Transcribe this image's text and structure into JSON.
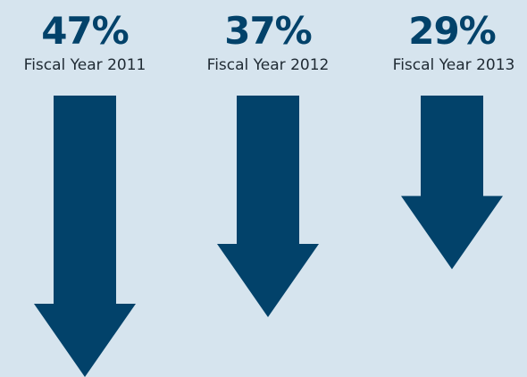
{
  "chart_data": {
    "type": "bar",
    "orientation": "downward-arrows",
    "categories": [
      "Fiscal Year 2011",
      "Fiscal Year 2012",
      "Fiscal Year 2013"
    ],
    "values": [
      47,
      37,
      29
    ],
    "value_labels": [
      "47%",
      "37%",
      "29%"
    ],
    "unit": "%",
    "title": "",
    "xlabel": "",
    "ylabel": "",
    "ylim": [
      0,
      47
    ],
    "grid": false,
    "colors": {
      "arrow": "#02426a",
      "value_text": "#02426a",
      "label_text": "#1f2a33",
      "background": "#d6e4ee"
    }
  }
}
